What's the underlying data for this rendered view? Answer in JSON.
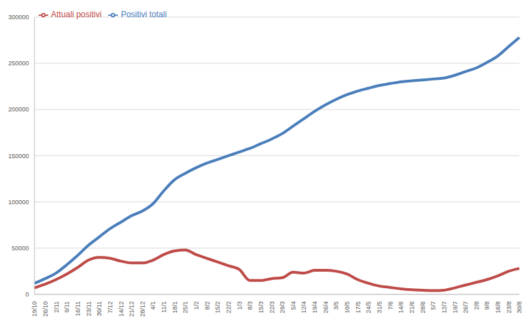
{
  "chart_data": {
    "type": "line",
    "categories": [
      "19/10",
      "26/10",
      "2/11",
      "9/11",
      "16/11",
      "23/11",
      "30/11",
      "7/12",
      "14/12",
      "21/12",
      "28/12",
      "4/1",
      "11/1",
      "18/1",
      "25/1",
      "1/2",
      "8/2",
      "15/2",
      "22/2",
      "1/3",
      "8/3",
      "15/3",
      "22/3",
      "29/3",
      "5/4",
      "12/4",
      "19/4",
      "26/4",
      "3/5",
      "10/5",
      "17/5",
      "24/5",
      "31/5",
      "7/6",
      "14/6",
      "21/6",
      "28/6",
      "5/7",
      "12/7",
      "19/7",
      "26/7",
      "2/8",
      "9/8",
      "16/8",
      "23/8",
      "30/8"
    ],
    "series": [
      {
        "name": "Positivi totali",
        "color": "#4a7ebb",
        "values": [
          12000,
          17000,
          23000,
          32000,
          42000,
          53000,
          62000,
          71000,
          78000,
          85000,
          90000,
          98000,
          112000,
          124000,
          131000,
          137000,
          142000,
          146000,
          150000,
          154000,
          158000,
          163000,
          168000,
          174000,
          182000,
          190000,
          198000,
          205000,
          211000,
          216000,
          220000,
          223000,
          226000,
          228000,
          230000,
          231000,
          232000,
          233000,
          234000,
          237000,
          241000,
          245000,
          251000,
          258000,
          268000,
          278000
        ]
      },
      {
        "name": "Attuali positivi",
        "color": "#be4b48",
        "values": [
          7000,
          11000,
          16000,
          22000,
          29000,
          37000,
          40000,
          39000,
          36000,
          34000,
          34000,
          37000,
          43000,
          47000,
          48000,
          43000,
          39000,
          35000,
          31000,
          27000,
          15000,
          15000,
          17000,
          18000,
          24000,
          23000,
          26000,
          26000,
          25000,
          22000,
          16000,
          12000,
          9000,
          7500,
          6000,
          5000,
          4500,
          4000,
          4500,
          7000,
          10000,
          13000,
          16000,
          20000,
          25000,
          28000
        ]
      }
    ],
    "ylim": [
      0,
      300000
    ],
    "yticks": [
      0,
      50000,
      100000,
      150000,
      200000,
      250000,
      300000
    ],
    "grid": true,
    "legend": "top-left"
  }
}
